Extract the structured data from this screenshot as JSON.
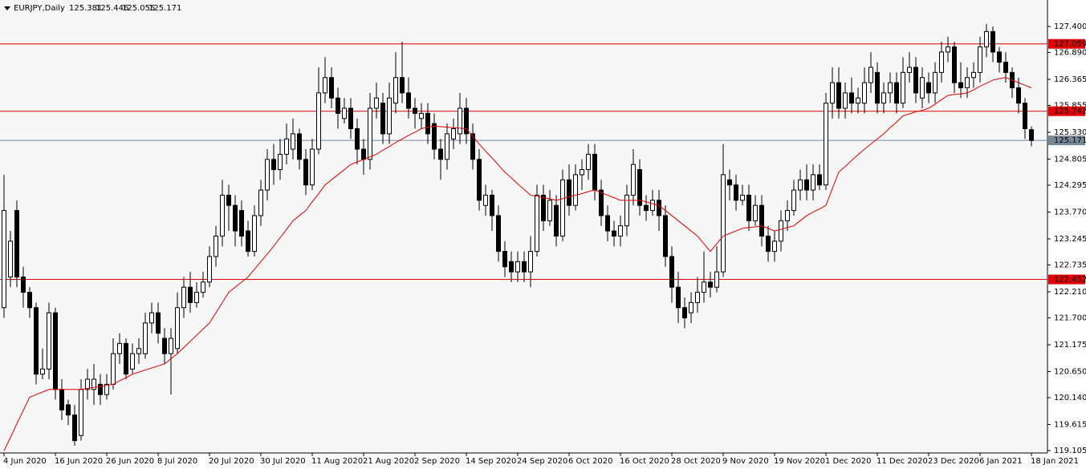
{
  "chart_data": {
    "type": "candlestick",
    "title": "EURJPY,Daily",
    "categories": [
      "4 Jun 2020",
      null,
      null,
      null,
      null,
      null,
      null,
      null,
      "16 Jun 2020",
      null,
      null,
      null,
      null,
      null,
      null,
      null,
      "26 Jun 2020",
      null,
      null,
      null,
      null,
      null,
      null,
      null,
      "8 Jul 2020",
      null,
      null,
      null,
      null,
      null,
      null,
      null,
      "20 Jul 2020",
      null,
      null,
      null,
      null,
      null,
      null,
      null,
      "30 Jul 2020",
      null,
      null,
      null,
      null,
      null,
      null,
      null,
      "11 Aug 2020",
      null,
      null,
      null,
      null,
      null,
      null,
      null,
      "21 Aug 2020",
      null,
      null,
      null,
      null,
      null,
      null,
      null,
      "2 Sep 2020",
      null,
      null,
      null,
      null,
      null,
      null,
      null,
      "14 Sep 2020",
      null,
      null,
      null,
      null,
      null,
      null,
      null,
      "24 Sep 2020",
      null,
      null,
      null,
      null,
      null,
      null,
      null,
      "6 Oct 2020",
      null,
      null,
      null,
      null,
      null,
      null,
      null,
      "16 Oct 2020",
      null,
      null,
      null,
      null,
      null,
      null,
      null,
      "28 Oct 2020",
      null,
      null,
      null,
      null,
      null,
      null,
      null,
      "9 Nov 2020",
      null,
      null,
      null,
      null,
      null,
      null,
      null,
      "19 Nov 2020",
      null,
      null,
      null,
      null,
      null,
      null,
      null,
      "1 Dec 2020",
      null,
      null,
      null,
      null,
      null,
      null,
      null,
      "11 Dec 2020",
      null,
      null,
      null,
      null,
      null,
      null,
      null,
      "23 Dec 2020",
      null,
      null,
      null,
      null,
      null,
      null,
      null,
      "6 Jan 2021",
      null,
      null,
      null,
      null,
      null,
      null,
      null,
      "18 Jan 2021"
    ],
    "open": [
      121.9,
      122.5,
      123.8,
      122.5,
      122.2,
      121.9,
      120.6,
      120.7,
      121.8,
      120.3,
      120.0,
      119.8,
      119.4,
      120.3,
      120.3,
      120.4,
      120.2,
      120.4,
      121.0,
      121.2,
      120.7,
      121.0,
      121.0,
      121.6,
      121.8,
      121.3,
      121.0,
      121.1,
      121.9,
      122.3,
      122.0,
      122.2,
      122.4,
      122.9,
      123.3,
      124.1,
      123.9,
      123.8,
      123.4,
      123.0,
      123.7,
      124.2,
      124.8,
      124.6,
      124.9,
      125.0,
      125.3,
      124.8,
      124.3,
      125.0,
      126.1,
      126.4,
      126.0,
      125.6,
      125.8,
      125.4,
      125.0,
      124.8,
      125.8,
      125.9,
      125.3,
      125.9,
      126.4,
      126.1,
      125.8,
      125.6,
      125.7,
      125.5,
      125.0,
      124.8,
      125.2,
      125.3,
      125.8,
      125.3,
      124.8,
      123.9,
      124.1,
      123.7,
      123.0,
      122.8,
      122.6,
      122.8,
      122.6,
      123.0,
      124.1,
      123.6,
      123.9,
      123.3,
      124.4,
      123.9,
      124.5,
      124.6,
      124.9,
      124.2,
      123.7,
      123.4,
      123.3,
      123.5,
      124.1,
      124.6,
      123.9,
      123.8,
      124.0,
      123.7,
      122.9,
      122.3,
      121.9,
      121.8,
      122.0,
      122.2,
      122.4,
      122.3,
      122.6,
      124.4,
      124.3,
      124.0,
      124.1,
      123.6,
      123.9,
      123.3,
      123.0,
      123.2,
      123.6,
      123.8,
      124.2,
      124.4,
      124.2,
      124.5,
      124.3,
      125.9,
      126.3,
      125.8,
      126.1,
      125.9,
      125.9,
      126.3,
      126.5,
      125.9,
      126.1,
      126.3,
      125.9,
      126.5,
      126.6,
      126.0,
      126.3,
      126.1,
      126.5,
      126.9,
      127.0,
      126.3,
      126.2,
      126.4,
      126.5,
      127.0,
      127.3,
      126.9,
      126.7,
      126.5,
      126.2,
      125.9,
      125.381
    ],
    "high": [
      124.5,
      123.4,
      124.0,
      122.7,
      122.3,
      122.0,
      121.1,
      122.0,
      121.9,
      120.5,
      120.1,
      120.0,
      120.5,
      120.7,
      120.8,
      120.6,
      120.6,
      121.3,
      121.4,
      121.3,
      121.2,
      121.3,
      121.8,
      122.0,
      122.0,
      121.5,
      121.5,
      122.2,
      122.5,
      122.6,
      122.4,
      122.6,
      123.1,
      123.5,
      124.4,
      124.3,
      124.1,
      124.0,
      123.6,
      123.9,
      124.4,
      125.0,
      125.1,
      125.2,
      125.5,
      125.6,
      125.4,
      125.0,
      125.2,
      126.6,
      126.8,
      126.6,
      126.2,
      126.0,
      126.0,
      125.6,
      125.2,
      126.1,
      126.3,
      126.1,
      126.3,
      126.9,
      127.1,
      126.4,
      126.0,
      125.9,
      125.9,
      125.7,
      125.2,
      125.5,
      125.6,
      126.1,
      126.0,
      125.5,
      125.0,
      124.3,
      124.2,
      123.9,
      123.2,
      123.0,
      123.0,
      123.0,
      123.3,
      124.3,
      124.3,
      124.2,
      124.1,
      124.6,
      124.7,
      124.7,
      124.8,
      125.1,
      125.1,
      124.4,
      123.9,
      123.6,
      123.7,
      124.3,
      125.0,
      124.8,
      124.1,
      124.2,
      124.2,
      123.9,
      123.1,
      122.6,
      122.1,
      122.2,
      122.5,
      123.0,
      122.6,
      123.1,
      125.1,
      124.6,
      124.5,
      124.3,
      124.3,
      124.1,
      124.1,
      123.5,
      123.4,
      123.8,
      124.0,
      124.4,
      124.6,
      124.7,
      124.7,
      124.7,
      126.1,
      126.6,
      126.6,
      126.3,
      126.4,
      126.2,
      126.6,
      126.9,
      126.7,
      126.3,
      126.5,
      126.5,
      126.8,
      126.9,
      126.8,
      126.6,
      126.5,
      126.7,
      127.1,
      127.2,
      127.1,
      126.7,
      126.6,
      126.7,
      127.2,
      127.45,
      127.4,
      127.0,
      126.9,
      126.6,
      126.4,
      126.0,
      125.446
    ],
    "low": [
      121.7,
      122.3,
      122.3,
      121.9,
      121.7,
      120.4,
      120.5,
      120.5,
      120.1,
      119.7,
      119.6,
      119.2,
      119.3,
      120.1,
      120.0,
      120.0,
      120.1,
      120.3,
      120.8,
      120.5,
      120.6,
      120.8,
      120.9,
      121.4,
      121.2,
      120.8,
      120.2,
      121.0,
      121.7,
      121.8,
      121.9,
      122.1,
      122.3,
      122.7,
      123.1,
      123.4,
      123.1,
      123.1,
      122.9,
      122.9,
      123.5,
      124.0,
      124.3,
      124.4,
      124.7,
      124.8,
      124.6,
      124.1,
      124.2,
      124.9,
      125.9,
      125.8,
      125.4,
      125.5,
      125.2,
      124.7,
      124.5,
      124.6,
      125.6,
      125.1,
      125.1,
      125.7,
      125.9,
      125.6,
      125.4,
      125.4,
      125.1,
      124.8,
      124.4,
      124.6,
      125.0,
      125.1,
      125.1,
      124.6,
      123.8,
      123.7,
      123.4,
      122.8,
      122.5,
      122.4,
      122.4,
      122.4,
      122.3,
      122.9,
      123.4,
      123.5,
      123.1,
      123.2,
      123.7,
      123.8,
      124.2,
      124.4,
      124.0,
      123.5,
      123.2,
      123.1,
      123.1,
      123.3,
      123.9,
      123.7,
      123.6,
      123.7,
      123.4,
      122.7,
      122.0,
      121.6,
      121.5,
      121.6,
      121.8,
      122.0,
      122.1,
      122.2,
      122.5,
      124.0,
      123.8,
      123.9,
      123.4,
      123.5,
      123.1,
      122.8,
      122.8,
      123.0,
      123.4,
      123.7,
      124.0,
      124.0,
      124.0,
      124.2,
      124.2,
      125.6,
      125.6,
      125.6,
      125.7,
      125.7,
      125.7,
      126.1,
      125.7,
      125.7,
      125.9,
      125.7,
      125.8,
      126.3,
      125.9,
      125.8,
      125.9,
      125.9,
      126.3,
      126.7,
      126.1,
      126.0,
      126.0,
      126.2,
      126.3,
      126.8,
      126.7,
      126.5,
      126.3,
      126.0,
      125.7,
      125.2,
      125.055
    ],
    "close": [
      123.8,
      123.2,
      122.5,
      122.2,
      121.9,
      120.6,
      120.7,
      121.8,
      120.3,
      119.9,
      119.8,
      119.3,
      120.3,
      120.5,
      120.5,
      120.2,
      120.4,
      121.0,
      121.2,
      120.6,
      121.0,
      121.1,
      121.6,
      121.8,
      121.4,
      121.0,
      121.3,
      121.9,
      122.3,
      122.0,
      122.2,
      122.4,
      122.9,
      123.3,
      124.1,
      123.9,
      123.4,
      123.3,
      123.0,
      123.7,
      124.2,
      124.8,
      124.6,
      124.9,
      125.2,
      125.3,
      124.8,
      124.3,
      125.0,
      126.1,
      126.4,
      126.0,
      125.7,
      125.8,
      125.4,
      125.0,
      124.8,
      125.8,
      126.0,
      125.3,
      126.0,
      126.4,
      126.1,
      125.8,
      125.7,
      125.7,
      125.3,
      125.0,
      124.8,
      125.3,
      125.4,
      125.8,
      125.3,
      124.8,
      124.0,
      124.1,
      123.7,
      123.0,
      122.7,
      122.6,
      122.8,
      122.6,
      123.0,
      124.1,
      123.6,
      124.0,
      123.3,
      124.4,
      123.9,
      124.5,
      124.6,
      124.9,
      124.2,
      123.7,
      123.4,
      123.3,
      123.5,
      124.1,
      124.7,
      123.9,
      123.8,
      124.0,
      123.7,
      122.9,
      122.3,
      121.9,
      121.7,
      122.0,
      122.2,
      122.4,
      122.3,
      122.6,
      124.5,
      124.3,
      124.0,
      124.1,
      123.6,
      123.9,
      123.3,
      123.0,
      123.2,
      123.6,
      123.8,
      124.2,
      124.4,
      124.2,
      124.5,
      124.3,
      125.9,
      126.3,
      125.8,
      126.1,
      125.9,
      126.0,
      126.3,
      126.6,
      125.9,
      126.1,
      126.3,
      125.9,
      126.5,
      126.6,
      126.1,
      126.4,
      126.1,
      126.5,
      126.9,
      127.0,
      126.3,
      126.2,
      126.4,
      126.5,
      127.0,
      127.3,
      126.9,
      126.7,
      126.5,
      126.2,
      125.9,
      125.4,
      125.171
    ],
    "up_color": "#ffffff",
    "down_color": "#000000",
    "ma": {
      "color": "#e00000",
      "values": [
        119.1,
        119.36,
        119.63,
        119.89,
        120.15,
        120.2,
        120.25,
        120.3,
        120.3,
        120.3,
        120.3,
        120.3,
        120.3,
        120.32,
        120.34,
        120.36,
        120.38,
        120.4,
        120.47,
        120.53,
        120.6,
        120.64,
        120.68,
        120.72,
        120.76,
        120.8,
        120.9,
        121.0,
        121.12,
        121.24,
        121.36,
        121.48,
        121.6,
        121.8,
        122.0,
        122.2,
        122.3,
        122.4,
        122.5,
        122.65,
        122.8,
        122.95,
        123.1,
        123.27,
        123.43,
        123.6,
        123.7,
        123.8,
        123.97,
        124.13,
        124.3,
        124.4,
        124.5,
        124.6,
        124.7,
        124.75,
        124.8,
        124.85,
        124.9,
        124.98,
        125.05,
        125.13,
        125.2,
        125.27,
        125.33,
        125.4,
        125.43,
        125.45,
        125.44,
        125.43,
        125.42,
        125.41,
        125.4,
        125.25,
        125.1,
        124.96,
        124.83,
        124.69,
        124.55,
        124.44,
        124.32,
        124.21,
        124.1,
        124.08,
        124.05,
        124.03,
        124.0,
        124.03,
        124.07,
        124.1,
        124.13,
        124.17,
        124.2,
        124.15,
        124.1,
        124.05,
        124.0,
        124.0,
        124.0,
        124.0,
        123.97,
        123.93,
        123.9,
        123.8,
        123.7,
        123.6,
        123.5,
        123.4,
        123.3,
        123.15,
        123.0,
        123.15,
        123.3,
        123.35,
        123.4,
        123.45,
        123.47,
        123.48,
        123.5,
        123.45,
        123.4,
        123.43,
        123.47,
        123.5,
        123.6,
        123.7,
        123.77,
        123.83,
        123.9,
        124.23,
        124.55,
        124.66,
        124.78,
        124.89,
        125.0,
        125.1,
        125.2,
        125.3,
        125.42,
        125.53,
        125.65,
        125.69,
        125.73,
        125.76,
        125.8,
        125.88,
        125.97,
        126.05,
        126.07,
        126.08,
        126.1,
        126.16,
        126.23,
        126.29,
        126.35,
        126.38,
        126.4,
        126.35,
        126.3,
        126.25,
        126.2
      ]
    },
    "hlines": {
      "color": "#e00000",
      "values": [
        127.059,
        125.742,
        122.452
      ]
    },
    "bid_line": {
      "color": "#778899",
      "value": 125.171
    },
    "ylim": [
      119.058,
      127.917
    ],
    "yticks": [
      {
        "value": 127.4,
        "label": "127.400"
      },
      {
        "value": 126.89,
        "label": "126.890"
      },
      126.365,
      125.855,
      {
        "value": 125.33,
        "label": "125.330"
      },
      124.805,
      124.295,
      {
        "value": 123.77,
        "label": "123.770"
      },
      123.245,
      122.735,
      {
        "value": 122.21,
        "label": "122.210"
      },
      {
        "value": 121.7,
        "label": "121.700"
      },
      121.175,
      {
        "value": 120.65,
        "label": "120.650"
      },
      {
        "value": 120.14,
        "label": "120.140"
      },
      119.615,
      119.105
    ]
  }
}
